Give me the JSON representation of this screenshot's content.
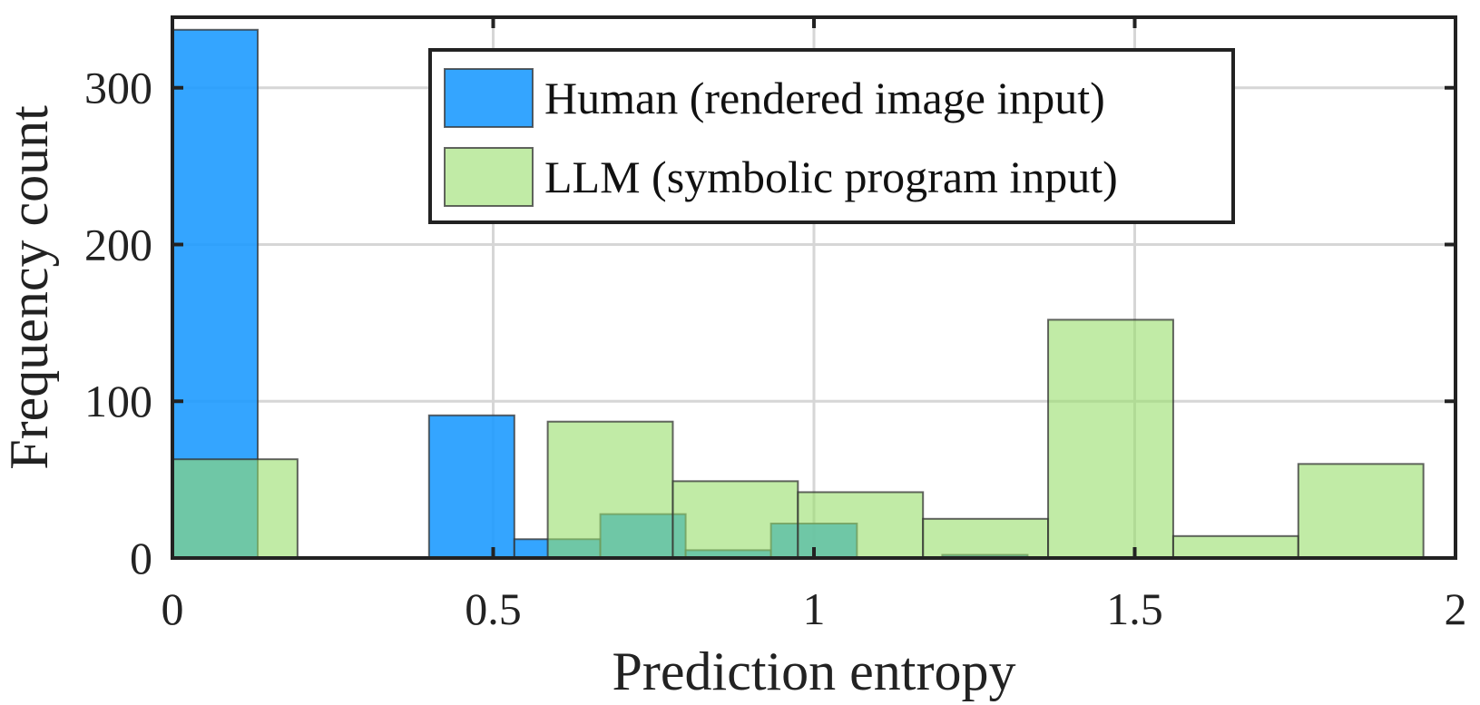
{
  "chart_data": {
    "type": "bar",
    "subtype": "overlapping-histogram",
    "title": "",
    "xlabel": "Prediction entropy",
    "ylabel": "Frequency count",
    "xlim": [
      0,
      2
    ],
    "ylim": [
      0,
      345
    ],
    "xticks": [
      0,
      0.5,
      1,
      1.5,
      2
    ],
    "xtick_labels": [
      "0",
      "0.5",
      "1",
      "1.5",
      "2"
    ],
    "yticks": [
      0,
      100,
      200,
      300
    ],
    "ytick_labels": [
      "0",
      "100",
      "200",
      "300"
    ],
    "grid": true,
    "legend_position": "top-center",
    "series": [
      {
        "name": "Human (rendered image input)",
        "color": "#1E9BFF",
        "opacity": 0.9,
        "bins": [
          {
            "x0": 0.0,
            "x1": 0.133,
            "count": 337
          },
          {
            "x0": 0.133,
            "x1": 0.267,
            "count": 0
          },
          {
            "x0": 0.267,
            "x1": 0.4,
            "count": 0
          },
          {
            "x0": 0.4,
            "x1": 0.533,
            "count": 91
          },
          {
            "x0": 0.533,
            "x1": 0.667,
            "count": 12
          },
          {
            "x0": 0.667,
            "x1": 0.8,
            "count": 28
          },
          {
            "x0": 0.8,
            "x1": 0.933,
            "count": 5
          },
          {
            "x0": 0.933,
            "x1": 1.067,
            "count": 22
          },
          {
            "x0": 1.067,
            "x1": 1.2,
            "count": 0
          },
          {
            "x0": 1.2,
            "x1": 1.333,
            "count": 2
          }
        ]
      },
      {
        "name": "LLM (symbolic program input)",
        "color": "#98DE6A",
        "opacity": 0.6,
        "bins": [
          {
            "x0": 0.0,
            "x1": 0.195,
            "count": 63
          },
          {
            "x0": 0.195,
            "x1": 0.39,
            "count": 0
          },
          {
            "x0": 0.39,
            "x1": 0.585,
            "count": 0
          },
          {
            "x0": 0.585,
            "x1": 0.78,
            "count": 87
          },
          {
            "x0": 0.78,
            "x1": 0.975,
            "count": 49
          },
          {
            "x0": 0.975,
            "x1": 1.17,
            "count": 42
          },
          {
            "x0": 1.17,
            "x1": 1.365,
            "count": 25
          },
          {
            "x0": 1.365,
            "x1": 1.56,
            "count": 152
          },
          {
            "x0": 1.56,
            "x1": 1.755,
            "count": 14
          },
          {
            "x0": 1.755,
            "x1": 1.95,
            "count": 60
          }
        ]
      }
    ]
  }
}
